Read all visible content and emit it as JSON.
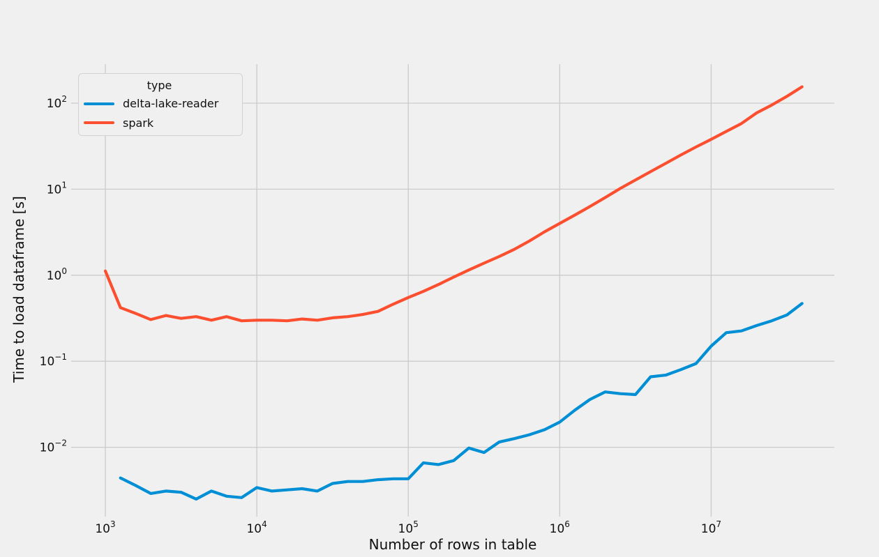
{
  "figure": {
    "background_color": "#f0f0f0",
    "grid_color": "#cbcbcb",
    "text_color": "#111111"
  },
  "chart_data": {
    "type": "line",
    "title": "",
    "xlabel": "Number of rows in table",
    "ylabel": "Time to load dataframe [s]",
    "x_scale": "log",
    "y_scale": "log",
    "xlim": [
      600,
      65000000
    ],
    "ylim": [
      0.0016,
      290
    ],
    "grid": true,
    "legend": {
      "title": "type",
      "position": "upper left"
    },
    "x_ticks": [
      {
        "base": "10",
        "exp": "3",
        "value": 1000
      },
      {
        "base": "10",
        "exp": "4",
        "value": 10000
      },
      {
        "base": "10",
        "exp": "5",
        "value": 100000
      },
      {
        "base": "10",
        "exp": "6",
        "value": 1000000
      },
      {
        "base": "10",
        "exp": "7",
        "value": 10000000
      }
    ],
    "y_ticks": [
      {
        "base": "10",
        "exp": "2",
        "value": 100
      },
      {
        "base": "10",
        "exp": "1",
        "value": 10
      },
      {
        "base": "10",
        "exp": "0",
        "value": 1
      },
      {
        "base": "10",
        "exp": "−1",
        "value": 0.1
      },
      {
        "base": "10",
        "exp": "−2",
        "value": 0.01
      }
    ],
    "series": [
      {
        "name": "delta-lake-reader",
        "color": "#008fd5",
        "x": [
          1259,
          1585,
          1995,
          2512,
          3162,
          3981,
          5012,
          6310,
          7943,
          10000,
          12589,
          15849,
          19953,
          25119,
          31623,
          39811,
          50119,
          63096,
          79433,
          100000,
          125893,
          158489,
          199526,
          251189,
          316228,
          398107,
          501187,
          630957,
          794328,
          1000000,
          1258925,
          1584893,
          1995262,
          2511886,
          3162278,
          3981072,
          5011872,
          6309573,
          7943282,
          10000000,
          12589254,
          15848932,
          19952623,
          25118864,
          31622777,
          39810717
        ],
        "y": [
          0.0044,
          0.0036,
          0.0029,
          0.0031,
          0.003,
          0.0025,
          0.0031,
          0.0027,
          0.0026,
          0.0034,
          0.0031,
          0.0032,
          0.0033,
          0.0031,
          0.0038,
          0.004,
          0.004,
          0.0042,
          0.0043,
          0.0043,
          0.0066,
          0.0063,
          0.007,
          0.0098,
          0.0087,
          0.0115,
          0.0126,
          0.014,
          0.016,
          0.0196,
          0.027,
          0.036,
          0.044,
          0.042,
          0.041,
          0.066,
          0.069,
          0.08,
          0.094,
          0.15,
          0.215,
          0.225,
          0.26,
          0.295,
          0.345,
          0.47
        ]
      },
      {
        "name": "spark",
        "color": "#fc4f30",
        "x": [
          1000,
          1259,
          1585,
          1995,
          2512,
          3162,
          3981,
          5012,
          6310,
          7943,
          10000,
          12589,
          15849,
          19953,
          25119,
          31623,
          39811,
          50119,
          63096,
          79433,
          100000,
          125893,
          158489,
          199526,
          251189,
          316228,
          398107,
          501187,
          630957,
          794328,
          1000000,
          1258925,
          1584893,
          1995262,
          2511886,
          3162278,
          3981072,
          5011872,
          6309573,
          7943282,
          10000000,
          12589254,
          15848932,
          19952623,
          25118864,
          31622777,
          39810717
        ],
        "y": [
          1.12,
          0.42,
          0.36,
          0.305,
          0.34,
          0.315,
          0.33,
          0.3,
          0.33,
          0.295,
          0.3,
          0.3,
          0.295,
          0.31,
          0.3,
          0.32,
          0.33,
          0.35,
          0.38,
          0.46,
          0.55,
          0.65,
          0.78,
          0.95,
          1.15,
          1.38,
          1.65,
          2.0,
          2.5,
          3.2,
          4.0,
          5.0,
          6.3,
          8.0,
          10.2,
          12.8,
          16.0,
          20.0,
          25.0,
          31.0,
          38.0,
          47.0,
          58.0,
          77.0,
          95.0,
          120.0,
          155.0
        ]
      }
    ]
  }
}
